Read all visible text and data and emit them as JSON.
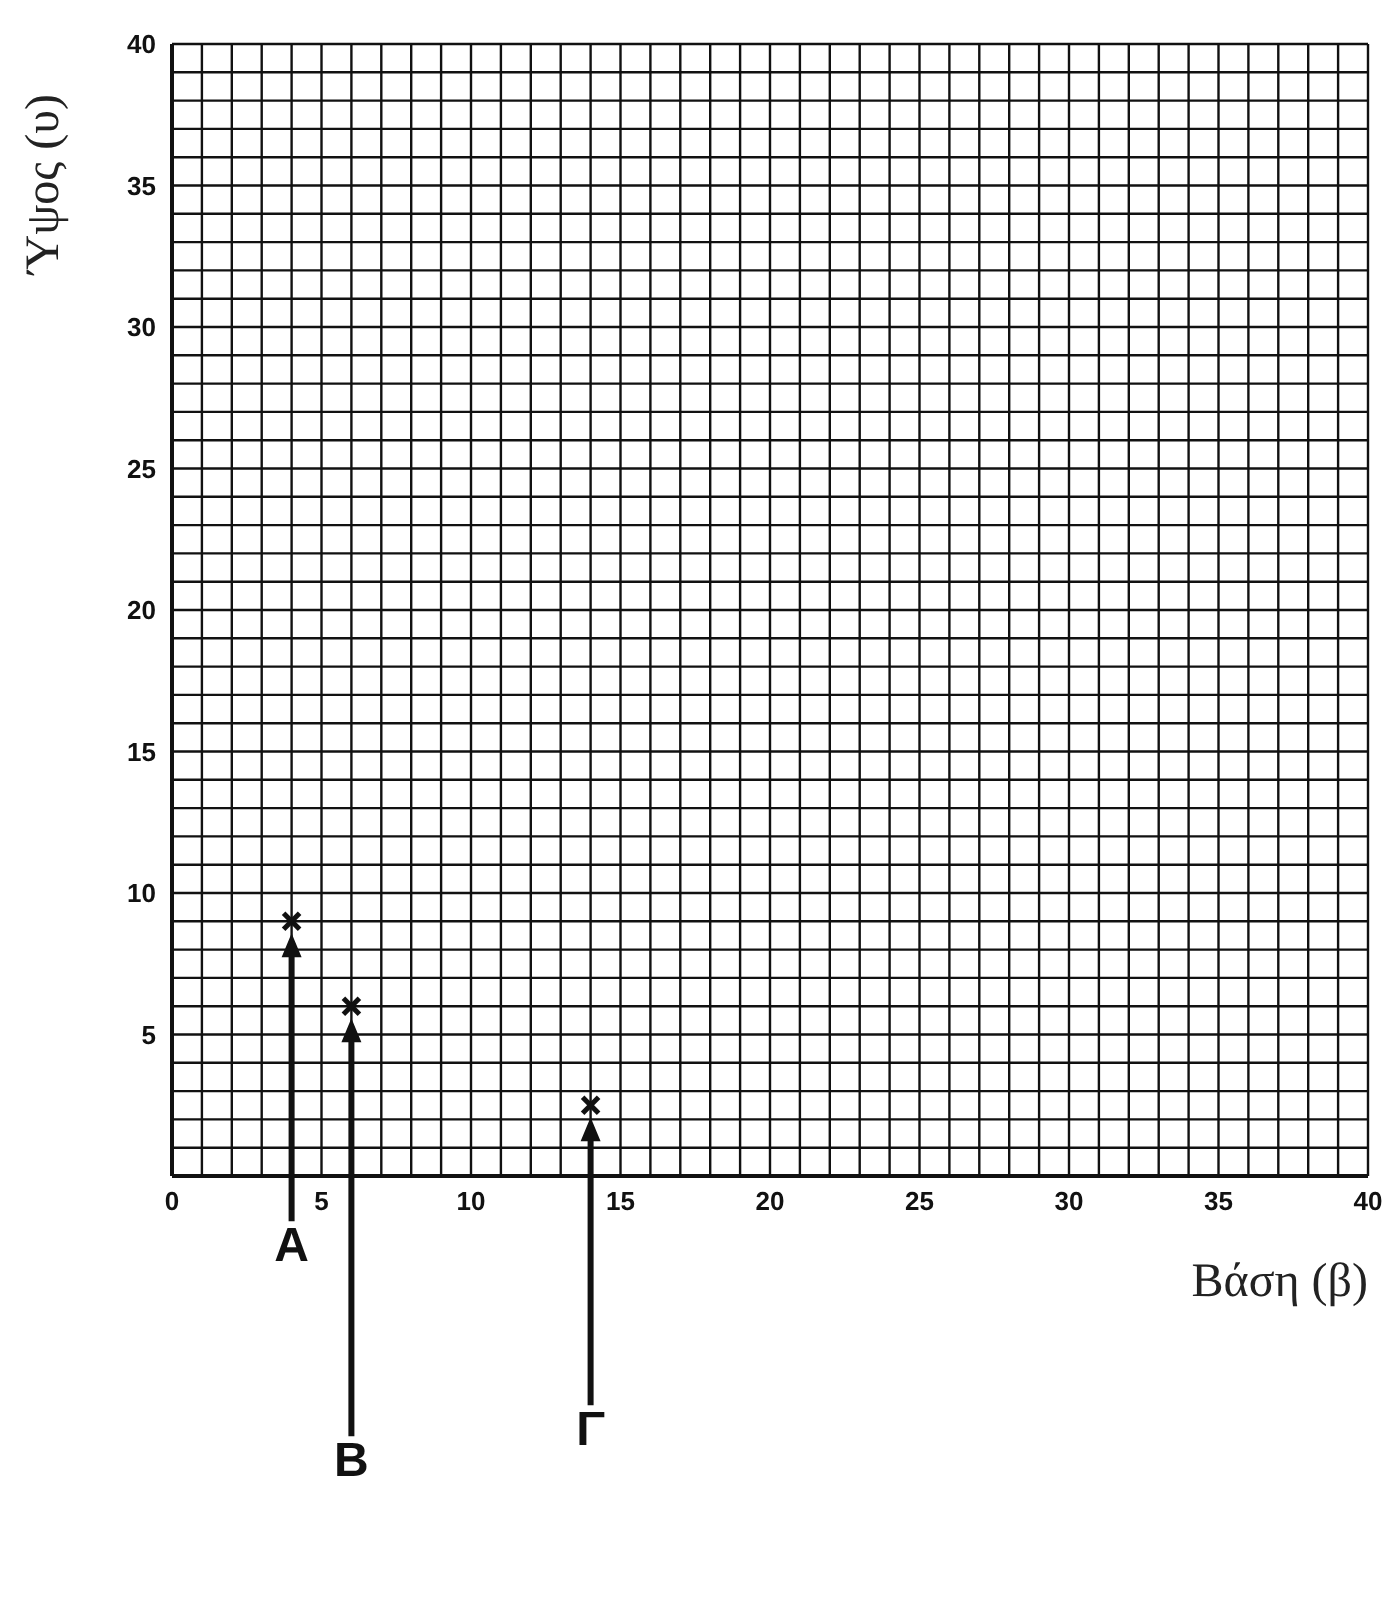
{
  "chart_data": {
    "type": "scatter",
    "xlabel": "Βάση (β)",
    "ylabel": "Ύψος (υ)",
    "series": [
      {
        "color": "#111111",
        "x": [
          4,
          6,
          14
        ],
        "values": [
          9,
          6,
          2.5
        ]
      }
    ],
    "marker": "cross",
    "grid": true,
    "xlim": [
      0,
      40
    ],
    "ylim": [
      0,
      40
    ],
    "xticks": [
      0,
      {
        "value": 1,
        "label": null
      },
      {
        "value": 2,
        "label": null
      },
      {
        "value": 3,
        "label": null
      },
      {
        "value": 4,
        "label": null
      },
      5,
      {
        "value": 6,
        "label": null
      },
      {
        "value": 7,
        "label": null
      },
      {
        "value": 8,
        "label": null
      },
      {
        "value": 9,
        "label": null
      },
      10,
      {
        "value": 11,
        "label": null
      },
      {
        "value": 12,
        "label": null
      },
      {
        "value": 13,
        "label": null
      },
      {
        "value": 14,
        "label": null
      },
      15,
      {
        "value": 16,
        "label": null
      },
      {
        "value": 17,
        "label": null
      },
      {
        "value": 18,
        "label": null
      },
      {
        "value": 19,
        "label": null
      },
      20,
      {
        "value": 21,
        "label": null
      },
      {
        "value": 22,
        "label": null
      },
      {
        "value": 23,
        "label": null
      },
      {
        "value": 24,
        "label": null
      },
      25,
      {
        "value": 26,
        "label": null
      },
      {
        "value": 27,
        "label": null
      },
      {
        "value": 28,
        "label": null
      },
      {
        "value": 29,
        "label": null
      },
      30,
      {
        "value": 31,
        "label": null
      },
      {
        "value": 32,
        "label": null
      },
      {
        "value": 33,
        "label": null
      },
      {
        "value": 34,
        "label": null
      },
      35,
      {
        "value": 36,
        "label": null
      },
      {
        "value": 37,
        "label": null
      },
      {
        "value": 38,
        "label": null
      },
      {
        "value": 39,
        "label": null
      },
      40
    ],
    "yticks": [
      {
        "value": 0,
        "label": null
      },
      {
        "value": 1,
        "label": null
      },
      {
        "value": 2,
        "label": null
      },
      {
        "value": 3,
        "label": null
      },
      {
        "value": 4,
        "label": null
      },
      5,
      {
        "value": 6,
        "label": null
      },
      {
        "value": 7,
        "label": null
      },
      {
        "value": 8,
        "label": null
      },
      {
        "value": 9,
        "label": null
      },
      10,
      {
        "value": 11,
        "label": null
      },
      {
        "value": 12,
        "label": null
      },
      {
        "value": 13,
        "label": null
      },
      {
        "value": 14,
        "label": null
      },
      15,
      {
        "value": 16,
        "label": null
      },
      {
        "value": 17,
        "label": null
      },
      {
        "value": 18,
        "label": null
      },
      {
        "value": 19,
        "label": null
      },
      20,
      {
        "value": 21,
        "label": null
      },
      {
        "value": 22,
        "label": null
      },
      {
        "value": 23,
        "label": null
      },
      {
        "value": 24,
        "label": null
      },
      25,
      {
        "value": 26,
        "label": null
      },
      {
        "value": 27,
        "label": null
      },
      {
        "value": 28,
        "label": null
      },
      {
        "value": 29,
        "label": null
      },
      30,
      {
        "value": 31,
        "label": null
      },
      {
        "value": 32,
        "label": null
      },
      {
        "value": 33,
        "label": null
      },
      {
        "value": 34,
        "label": null
      },
      35,
      {
        "value": 36,
        "label": null
      },
      {
        "value": 37,
        "label": null
      },
      {
        "value": 38,
        "label": null
      },
      {
        "value": 39,
        "label": null
      },
      40
    ],
    "annotations": [
      "A",
      "B",
      "Γ"
    ]
  }
}
